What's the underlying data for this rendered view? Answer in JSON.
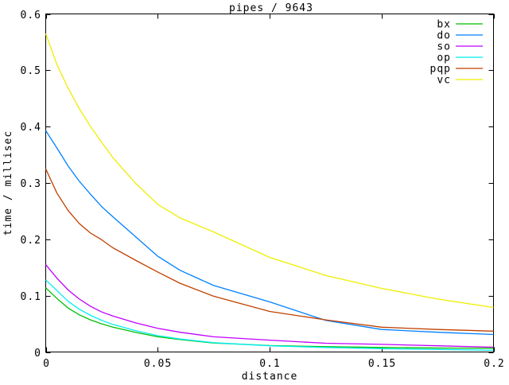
{
  "window": {
    "background": "#ffffff",
    "axis_color": "#000000",
    "text_color": "#000000"
  },
  "chart_data": {
    "type": "line",
    "title": "pipes / 9643",
    "xlabel": "distance",
    "ylabel": "time / millisec",
    "xlim": [
      0,
      0.2
    ],
    "ylim": [
      0,
      0.6
    ],
    "grid": false,
    "legend_position": "top-right-inside",
    "x_ticks": {
      "values": [
        0,
        0.05,
        0.1,
        0.15,
        0.2
      ],
      "labels": [
        "0",
        "0.05",
        "0.1",
        "0.15",
        "0.2"
      ]
    },
    "y_ticks": {
      "values": [
        0,
        0.1,
        0.2,
        0.3,
        0.4,
        0.5,
        0.6
      ],
      "labels": [
        "0",
        "0.1",
        "0.2",
        "0.3",
        "0.4",
        "0.5",
        "0.6"
      ]
    },
    "x": [
      0,
      0.005,
      0.01,
      0.015,
      0.02,
      0.025,
      0.03,
      0.04,
      0.05,
      0.06,
      0.075,
      0.1,
      0.125,
      0.15,
      0.175,
      0.2
    ],
    "series": [
      {
        "name": "bx",
        "color": "#00c000",
        "values": [
          0.114,
          0.095,
          0.078,
          0.066,
          0.057,
          0.05,
          0.044,
          0.035,
          0.027,
          0.022,
          0.016,
          0.0115,
          0.0095,
          0.008,
          0.007,
          0.0065
        ]
      },
      {
        "name": "do",
        "color": "#0080ff",
        "values": [
          0.393,
          0.362,
          0.33,
          0.303,
          0.28,
          0.258,
          0.24,
          0.205,
          0.17,
          0.145,
          0.118,
          0.089,
          0.056,
          0.04,
          0.035,
          0.031
        ]
      },
      {
        "name": "so",
        "color": "#c000ff",
        "values": [
          0.155,
          0.131,
          0.11,
          0.094,
          0.081,
          0.071,
          0.064,
          0.052,
          0.042,
          0.035,
          0.027,
          0.021,
          0.0155,
          0.0135,
          0.011,
          0.0085
        ]
      },
      {
        "name": "op",
        "color": "#00eeee",
        "values": [
          0.128,
          0.109,
          0.09,
          0.076,
          0.065,
          0.056,
          0.049,
          0.038,
          0.029,
          0.023,
          0.0165,
          0.011,
          0.008,
          0.006,
          0.0045,
          0.003
        ]
      },
      {
        "name": "pqp",
        "color": "#c04000",
        "values": [
          0.325,
          0.282,
          0.251,
          0.228,
          0.211,
          0.199,
          0.185,
          0.163,
          0.142,
          0.122,
          0.099,
          0.072,
          0.057,
          0.044,
          0.04,
          0.037
        ]
      },
      {
        "name": "vc",
        "color": "#eeee00",
        "values": [
          0.565,
          0.51,
          0.468,
          0.432,
          0.4,
          0.372,
          0.345,
          0.3,
          0.262,
          0.238,
          0.213,
          0.168,
          0.136,
          0.113,
          0.094,
          0.079
        ]
      }
    ]
  }
}
